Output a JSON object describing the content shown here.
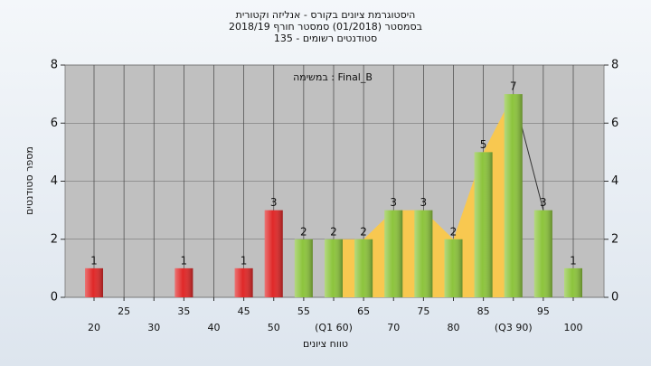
{
  "chart_data": {
    "type": "bar",
    "title": [
      "היסטוגרמת ציונים בקורס - אנליזה וקטורית",
      "בסמסטר  (01/2018)  סמסטר חורף 2018/19",
      "סטודנטים רשומים - 135"
    ],
    "annotation": "במשימה : Final_B",
    "y_label": "מספר סטודנטים",
    "x_label": "טווח ציונים",
    "categories": [
      "20",
      "25",
      "30",
      "35",
      "40",
      "45",
      "50",
      "55",
      "(Q1 60)",
      "65",
      "70",
      "75",
      "80",
      "85",
      "(Q3 90)",
      "95",
      "100"
    ],
    "values": [
      1,
      0,
      0,
      1,
      0,
      1,
      3,
      2,
      2,
      2,
      3,
      3,
      2,
      5,
      7,
      3,
      1
    ],
    "colors": [
      "#e02828",
      "#e02828",
      "#e02828",
      "#e02828",
      "#e02828",
      "#e02828",
      "#e02828",
      "#8cc43c",
      "#8cc43c",
      "#8cc43c",
      "#8cc43c",
      "#8cc43c",
      "#8cc43c",
      "#8cc43c",
      "#8cc43c",
      "#8cc43c",
      "#8cc43c"
    ],
    "area_color": "#f8c850",
    "ylim": [
      0,
      8
    ],
    "yticks": [
      0,
      2,
      4,
      6,
      8
    ],
    "grid": true
  }
}
